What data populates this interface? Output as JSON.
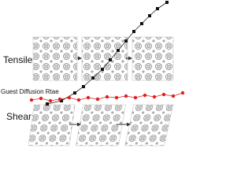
{
  "labels": {
    "tensile": "Tensile",
    "diffusion": "Guest Diffusion Rtae",
    "shear": "Shear"
  }
}
